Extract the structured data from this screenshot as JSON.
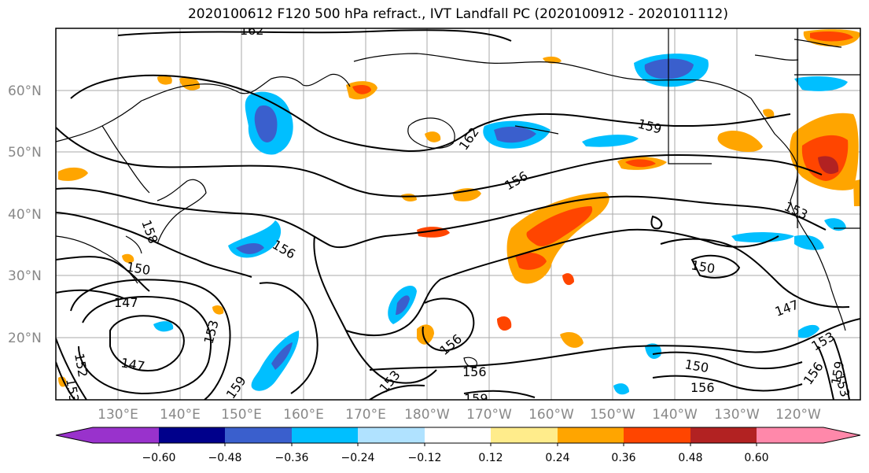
{
  "title": "2020100612 F120 500 hPa refract., IVT Landfall PC (2020100912 - 2020101112)",
  "lat_labels": [
    "60°N",
    "50°N",
    "40°N",
    "30°N",
    "20°N"
  ],
  "lon_labels": [
    "130°E",
    "140°E",
    "150°E",
    "160°E",
    "170°E",
    "180°W",
    "170°W",
    "160°W",
    "150°W",
    "140°W",
    "130°W",
    "120°W"
  ],
  "colorbar": {
    "colors": [
      "#9932cc",
      "#00008b",
      "#3a5fcd",
      "#00bfff",
      "#b0e2ff",
      "#ffffff",
      "#ffec8b",
      "#ffa500",
      "#ff4500",
      "#b22222",
      "#ff88aa"
    ],
    "tick_labels": [
      "−0.60",
      "−0.48",
      "−0.36",
      "−0.24",
      "−0.12",
      "0.12",
      "0.24",
      "0.36",
      "0.48",
      "0.60"
    ]
  },
  "contour_labels": [
    "162",
    "162",
    "159",
    "156",
    "153",
    "158",
    "150",
    "147",
    "156",
    "153",
    "156",
    "147",
    "153",
    "159",
    "156",
    "159",
    "150",
    "147",
    "153",
    "150",
    "156",
    "153",
    "156",
    "159",
    "152",
    "153"
  ]
}
